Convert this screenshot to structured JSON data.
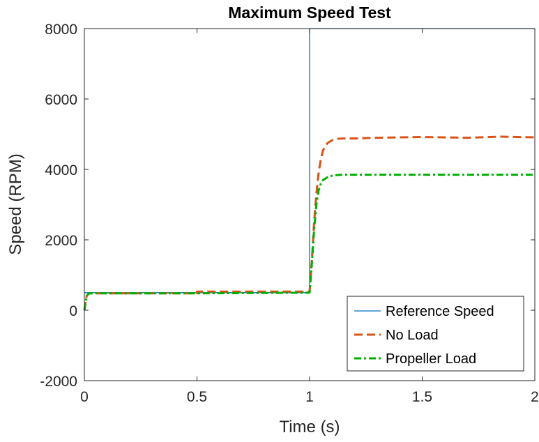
{
  "chart_data": {
    "type": "line",
    "title": "Maximum Speed Test",
    "xlabel": "Time (s)",
    "ylabel": "Speed (RPM)",
    "xlim": [
      0,
      2
    ],
    "ylim": [
      -2000,
      8000
    ],
    "xticks": [
      0,
      0.5,
      1,
      1.5,
      2
    ],
    "xtick_labels": [
      "0",
      "0.5",
      "1",
      "1.5",
      "2"
    ],
    "yticks": [
      -2000,
      0,
      2000,
      4000,
      6000,
      8000
    ],
    "ytick_labels": [
      "-2000",
      "0",
      "2000",
      "4000",
      "6000",
      "8000"
    ],
    "grid": false,
    "legend_position": "bottom-right",
    "series": [
      {
        "name": "Reference Speed",
        "color": "#0072BD",
        "style": "solid",
        "x": [
          0,
          1.0,
          1.0,
          2.0
        ],
        "y": [
          500,
          500,
          8000,
          8000
        ]
      },
      {
        "name": "No Load",
        "color": "#D95319",
        "style": "dashed",
        "x": [
          0,
          0.01,
          0.02,
          0.5,
          0.5,
          0.75,
          1.0,
          1.01,
          1.02,
          1.03,
          1.04,
          1.05,
          1.06,
          1.08,
          1.1,
          1.12,
          1.15,
          1.2,
          1.3,
          1.5,
          1.7,
          1.85,
          2.0
        ],
        "y": [
          0,
          400,
          480,
          480,
          530,
          530,
          530,
          1400,
          2500,
          3300,
          3900,
          4300,
          4550,
          4750,
          4830,
          4870,
          4880,
          4880,
          4900,
          4920,
          4900,
          4930,
          4910
        ]
      },
      {
        "name": "Propeller Load",
        "color": "#00B000",
        "style": "dashdot",
        "x": [
          0,
          0.01,
          0.02,
          0.5,
          0.75,
          1.0,
          1.01,
          1.02,
          1.03,
          1.04,
          1.05,
          1.06,
          1.08,
          1.1,
          1.12,
          1.15,
          1.2,
          1.5,
          2.0
        ],
        "y": [
          0,
          400,
          480,
          480,
          490,
          500,
          1300,
          2300,
          3000,
          3400,
          3600,
          3700,
          3780,
          3820,
          3840,
          3850,
          3850,
          3850,
          3850
        ]
      }
    ]
  }
}
